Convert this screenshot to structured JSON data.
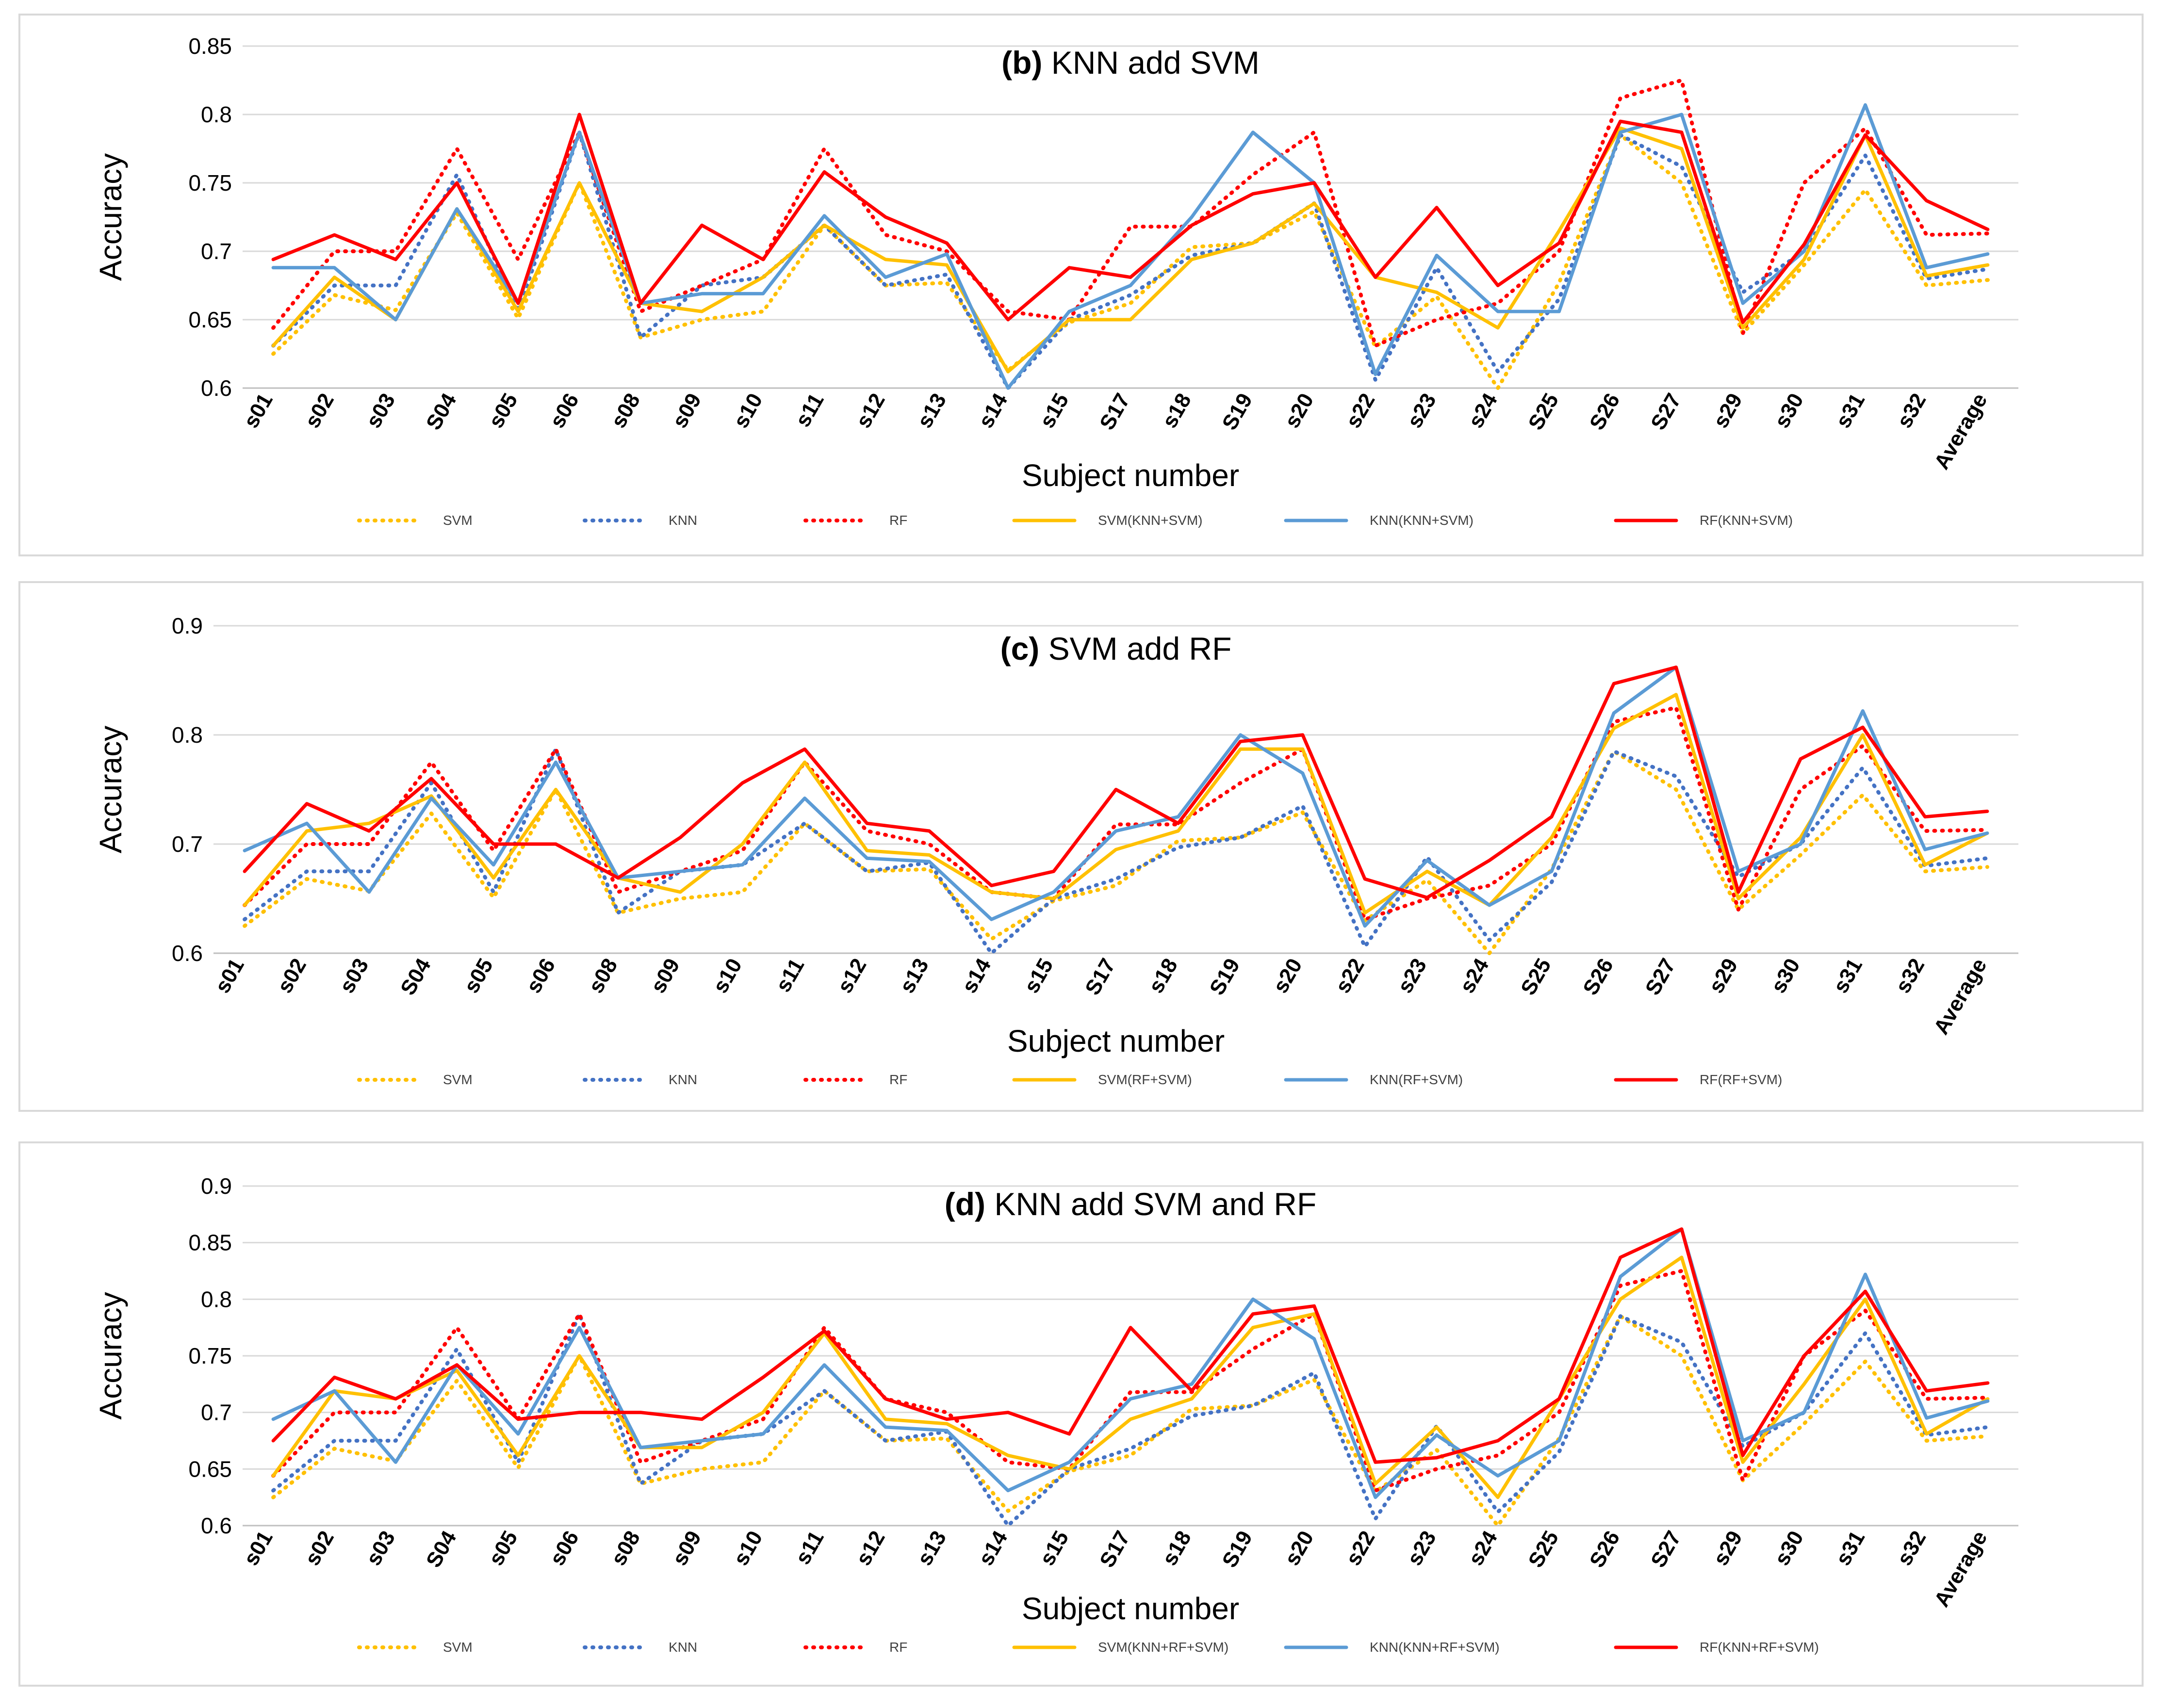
{
  "figure": {
    "layout": "three stacked line-chart panels"
  },
  "chart_data": [
    {
      "type": "line",
      "title_prefix": "(b)",
      "title_rest": " KNN add SVM",
      "xlabel": "Subject number",
      "ylabel": "Accuracy",
      "categories": [
        "s01",
        "s02",
        "s03",
        "S04",
        "s05",
        "s06",
        "s08",
        "s09",
        "s10",
        "s11",
        "s12",
        "s13",
        "s14",
        "s15",
        "S17",
        "s18",
        "S19",
        "s20",
        "s22",
        "s23",
        "s24",
        "S25",
        "S26",
        "S27",
        "s29",
        "s30",
        "s31",
        "s32",
        "Average"
      ],
      "ylim": [
        0.6,
        0.85
      ],
      "yticks": [
        0.6,
        0.65,
        0.7,
        0.75,
        0.8,
        0.85
      ],
      "ytick_labels": [
        "0.6",
        "0.65",
        "0.7",
        "0.75",
        "0.8",
        "0.85"
      ],
      "grid": true,
      "legend_position": "bottom",
      "series": [
        {
          "name": "SVM",
          "color": "#FFC000",
          "style": "dotted",
          "values": [
            0.625,
            0.668,
            0.657,
            0.728,
            0.651,
            0.75,
            0.637,
            0.65,
            0.656,
            0.719,
            0.675,
            0.677,
            0.613,
            0.648,
            0.662,
            0.703,
            0.706,
            0.729,
            0.63,
            0.667,
            0.6,
            0.677,
            0.785,
            0.75,
            0.64,
            0.69,
            0.745,
            0.675,
            0.679
          ]
        },
        {
          "name": "KNN",
          "color": "#4472C4",
          "style": "dotted",
          "values": [
            0.631,
            0.675,
            0.675,
            0.756,
            0.656,
            0.787,
            0.637,
            0.675,
            0.681,
            0.719,
            0.675,
            0.683,
            0.6,
            0.65,
            0.668,
            0.697,
            0.706,
            0.735,
            0.606,
            0.688,
            0.612,
            0.665,
            0.785,
            0.762,
            0.67,
            0.7,
            0.77,
            0.68,
            0.687
          ]
        },
        {
          "name": "RF",
          "color": "#FF0000",
          "style": "dotted",
          "values": [
            0.644,
            0.7,
            0.7,
            0.775,
            0.694,
            0.787,
            0.656,
            0.675,
            0.694,
            0.775,
            0.712,
            0.7,
            0.656,
            0.65,
            0.718,
            0.718,
            0.756,
            0.787,
            0.631,
            0.65,
            0.662,
            0.7,
            0.812,
            0.825,
            0.64,
            0.75,
            0.79,
            0.712,
            0.713
          ]
        },
        {
          "name": "SVM(KNN+SVM)",
          "color": "#FFC000",
          "style": "solid",
          "values": [
            0.631,
            0.681,
            0.65,
            0.731,
            0.656,
            0.75,
            0.662,
            0.656,
            0.681,
            0.719,
            0.694,
            0.69,
            0.612,
            0.65,
            0.65,
            0.694,
            0.706,
            0.735,
            0.681,
            0.67,
            0.644,
            0.715,
            0.79,
            0.775,
            0.644,
            0.694,
            0.785,
            0.682,
            0.69
          ]
        },
        {
          "name": "KNN(KNN+SVM)",
          "color": "#5B9BD5",
          "style": "solid",
          "values": [
            0.688,
            0.688,
            0.65,
            0.731,
            0.662,
            0.787,
            0.662,
            0.669,
            0.669,
            0.726,
            0.681,
            0.698,
            0.6,
            0.656,
            0.675,
            0.725,
            0.787,
            0.75,
            0.61,
            0.697,
            0.656,
            0.656,
            0.787,
            0.8,
            0.662,
            0.7,
            0.807,
            0.688,
            0.698
          ]
        },
        {
          "name": "RF(KNN+SVM)",
          "color": "#FF0000",
          "style": "solid",
          "values": [
            0.694,
            0.712,
            0.694,
            0.75,
            0.662,
            0.8,
            0.662,
            0.719,
            0.694,
            0.758,
            0.725,
            0.706,
            0.65,
            0.688,
            0.681,
            0.719,
            0.742,
            0.75,
            0.681,
            0.732,
            0.675,
            0.706,
            0.795,
            0.787,
            0.648,
            0.705,
            0.785,
            0.737,
            0.716
          ]
        }
      ]
    },
    {
      "type": "line",
      "title_prefix": "(c)",
      "title_rest": " SVM add RF",
      "xlabel": "Subject number",
      "ylabel": "Accuracy",
      "categories": [
        "s01",
        "s02",
        "s03",
        "S04",
        "s05",
        "s06",
        "s08",
        "s09",
        "s10",
        "s11",
        "s12",
        "s13",
        "s14",
        "s15",
        "S17",
        "s18",
        "S19",
        "s20",
        "s22",
        "s23",
        "s24",
        "S25",
        "S26",
        "S27",
        "s29",
        "s30",
        "s31",
        "s32",
        "Average"
      ],
      "ylim": [
        0.6,
        0.9
      ],
      "yticks": [
        0.6,
        0.7,
        0.8,
        0.9
      ],
      "ytick_labels": [
        "0.6",
        "0.7",
        "0.8",
        "0.9"
      ],
      "grid": true,
      "legend_position": "bottom",
      "series": [
        {
          "name": "SVM",
          "color": "#FFC000",
          "style": "dotted",
          "values": [
            0.625,
            0.668,
            0.657,
            0.728,
            0.651,
            0.75,
            0.637,
            0.65,
            0.656,
            0.719,
            0.675,
            0.677,
            0.613,
            0.648,
            0.662,
            0.703,
            0.706,
            0.729,
            0.63,
            0.667,
            0.6,
            0.677,
            0.785,
            0.75,
            0.64,
            0.69,
            0.745,
            0.675,
            0.679
          ]
        },
        {
          "name": "KNN",
          "color": "#4472C4",
          "style": "dotted",
          "values": [
            0.631,
            0.675,
            0.675,
            0.756,
            0.656,
            0.787,
            0.637,
            0.675,
            0.681,
            0.719,
            0.675,
            0.683,
            0.6,
            0.65,
            0.668,
            0.697,
            0.706,
            0.735,
            0.606,
            0.688,
            0.612,
            0.665,
            0.785,
            0.762,
            0.67,
            0.7,
            0.77,
            0.68,
            0.687
          ]
        },
        {
          "name": "RF",
          "color": "#FF0000",
          "style": "dotted",
          "values": [
            0.644,
            0.7,
            0.7,
            0.775,
            0.694,
            0.787,
            0.656,
            0.675,
            0.694,
            0.775,
            0.712,
            0.7,
            0.656,
            0.65,
            0.718,
            0.718,
            0.756,
            0.787,
            0.631,
            0.65,
            0.662,
            0.7,
            0.812,
            0.825,
            0.64,
            0.75,
            0.79,
            0.712,
            0.713
          ]
        },
        {
          "name": "SVM(RF+SVM)",
          "color": "#FFC000",
          "style": "solid",
          "values": [
            0.644,
            0.712,
            0.719,
            0.744,
            0.669,
            0.75,
            0.669,
            0.656,
            0.7,
            0.775,
            0.694,
            0.69,
            0.656,
            0.65,
            0.695,
            0.712,
            0.787,
            0.787,
            0.637,
            0.675,
            0.644,
            0.706,
            0.806,
            0.837,
            0.65,
            0.706,
            0.8,
            0.681,
            0.71
          ]
        },
        {
          "name": "KNN(RF+SVM)",
          "color": "#5B9BD5",
          "style": "solid",
          "values": [
            0.694,
            0.719,
            0.656,
            0.742,
            0.681,
            0.775,
            0.669,
            0.675,
            0.681,
            0.742,
            0.687,
            0.684,
            0.631,
            0.656,
            0.712,
            0.725,
            0.8,
            0.765,
            0.625,
            0.685,
            0.644,
            0.675,
            0.82,
            0.862,
            0.675,
            0.7,
            0.822,
            0.695,
            0.71
          ]
        },
        {
          "name": "RF(RF+SVM)",
          "color": "#FF0000",
          "style": "solid",
          "values": [
            0.675,
            0.737,
            0.712,
            0.76,
            0.7,
            0.7,
            0.669,
            0.706,
            0.756,
            0.787,
            0.719,
            0.712,
            0.662,
            0.675,
            0.75,
            0.719,
            0.794,
            0.8,
            0.668,
            0.651,
            0.685,
            0.725,
            0.847,
            0.862,
            0.656,
            0.778,
            0.807,
            0.725,
            0.73
          ]
        }
      ]
    },
    {
      "type": "line",
      "title_prefix": "(d)",
      "title_rest": " KNN add SVM and RF",
      "xlabel": "Subject number",
      "ylabel": "Accuracy",
      "categories": [
        "s01",
        "s02",
        "s03",
        "S04",
        "s05",
        "s06",
        "s08",
        "s09",
        "s10",
        "s11",
        "s12",
        "s13",
        "s14",
        "s15",
        "S17",
        "s18",
        "S19",
        "s20",
        "s22",
        "s23",
        "s24",
        "S25",
        "S26",
        "S27",
        "s29",
        "s30",
        "s31",
        "s32",
        "Average"
      ],
      "ylim": [
        0.6,
        0.9
      ],
      "yticks": [
        0.6,
        0.65,
        0.7,
        0.75,
        0.8,
        0.85,
        0.9
      ],
      "ytick_labels": [
        "0.6",
        "0.65",
        "0.7",
        "0.75",
        "0.8",
        "0.85",
        "0.9"
      ],
      "grid": true,
      "legend_position": "bottom",
      "series": [
        {
          "name": "SVM",
          "color": "#FFC000",
          "style": "dotted",
          "values": [
            0.625,
            0.668,
            0.657,
            0.728,
            0.651,
            0.75,
            0.637,
            0.65,
            0.656,
            0.719,
            0.675,
            0.677,
            0.613,
            0.648,
            0.662,
            0.703,
            0.706,
            0.729,
            0.63,
            0.667,
            0.6,
            0.677,
            0.785,
            0.75,
            0.64,
            0.69,
            0.745,
            0.675,
            0.679
          ]
        },
        {
          "name": "KNN",
          "color": "#4472C4",
          "style": "dotted",
          "values": [
            0.631,
            0.675,
            0.675,
            0.756,
            0.656,
            0.787,
            0.637,
            0.675,
            0.681,
            0.719,
            0.675,
            0.683,
            0.6,
            0.65,
            0.668,
            0.697,
            0.706,
            0.735,
            0.606,
            0.688,
            0.612,
            0.665,
            0.785,
            0.762,
            0.67,
            0.7,
            0.77,
            0.68,
            0.687
          ]
        },
        {
          "name": "RF",
          "color": "#FF0000",
          "style": "dotted",
          "values": [
            0.644,
            0.7,
            0.7,
            0.775,
            0.694,
            0.787,
            0.656,
            0.675,
            0.694,
            0.775,
            0.712,
            0.7,
            0.656,
            0.65,
            0.718,
            0.718,
            0.756,
            0.787,
            0.631,
            0.65,
            0.662,
            0.7,
            0.812,
            0.825,
            0.64,
            0.75,
            0.79,
            0.712,
            0.713
          ]
        },
        {
          "name": "SVM(KNN+RF+SVM)",
          "color": "#FFC000",
          "style": "solid",
          "values": [
            0.644,
            0.719,
            0.712,
            0.737,
            0.662,
            0.75,
            0.669,
            0.669,
            0.7,
            0.77,
            0.694,
            0.69,
            0.662,
            0.65,
            0.694,
            0.712,
            0.775,
            0.787,
            0.637,
            0.687,
            0.625,
            0.712,
            0.8,
            0.837,
            0.656,
            0.725,
            0.8,
            0.681,
            0.712
          ]
        },
        {
          "name": "KNN(KNN+RF+SVM)",
          "color": "#5B9BD5",
          "style": "solid",
          "values": [
            0.694,
            0.719,
            0.656,
            0.742,
            0.681,
            0.775,
            0.669,
            0.675,
            0.681,
            0.742,
            0.687,
            0.684,
            0.631,
            0.656,
            0.712,
            0.725,
            0.8,
            0.765,
            0.625,
            0.68,
            0.644,
            0.675,
            0.82,
            0.862,
            0.675,
            0.7,
            0.822,
            0.695,
            0.71
          ]
        },
        {
          "name": "RF(KNN+RF+SVM)",
          "color": "#FF0000",
          "style": "solid",
          "values": [
            0.675,
            0.731,
            0.712,
            0.742,
            0.694,
            0.7,
            0.7,
            0.694,
            0.731,
            0.772,
            0.712,
            0.694,
            0.7,
            0.681,
            0.775,
            0.719,
            0.787,
            0.794,
            0.656,
            0.66,
            0.675,
            0.712,
            0.837,
            0.862,
            0.662,
            0.75,
            0.807,
            0.719,
            0.726
          ]
        }
      ]
    }
  ]
}
